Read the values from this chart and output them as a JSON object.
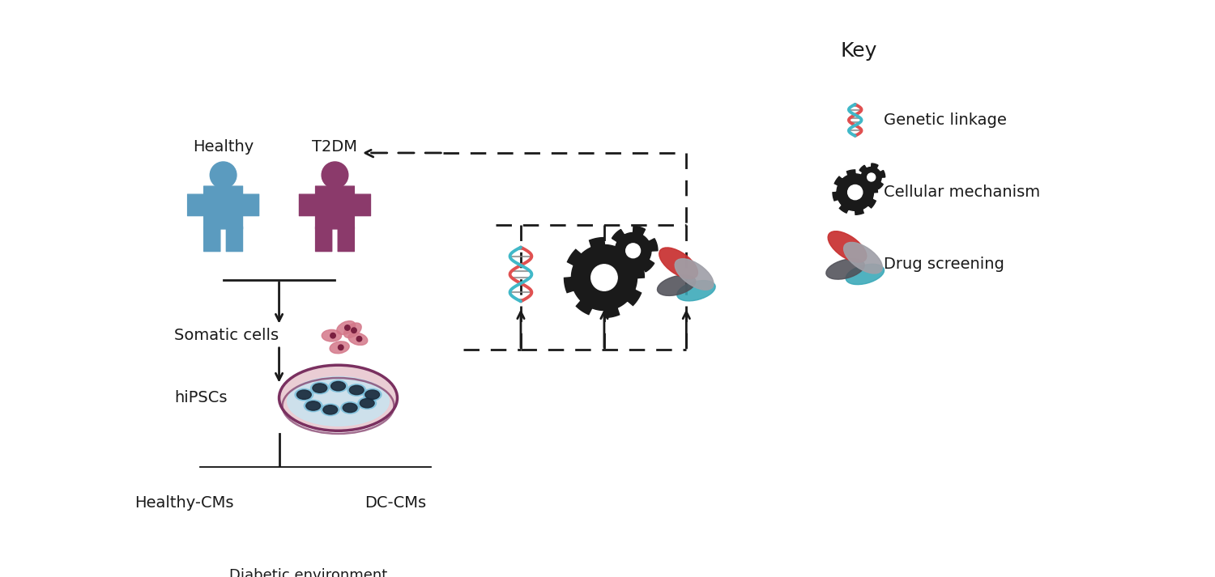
{
  "bg_color": "#ffffff",
  "text_color": "#1a1a1a",
  "healthy_color": "#5b9bbf",
  "t2dm_color": "#8b3a6b",
  "somatic_color": "#d4788a",
  "hipsc_color": "#8b3a6b",
  "healthy_cm_color": "#c4788a",
  "dc_cm_color": "#b090b8",
  "labels": {
    "healthy": "Healthy",
    "t2dm": "T2DM",
    "somatic": "Somatic cells",
    "hipsc": "hiPSCs",
    "healthy_cm": "Healthy-CMs",
    "dc_cm": "DC-CMs",
    "diabetic_env": "Diabetic environment",
    "key": "Key",
    "genetic": "Genetic linkage",
    "cellular": "Cellular mechanism",
    "drug": "Drug screening"
  },
  "font_size_labels": 14,
  "font_size_key": 16
}
